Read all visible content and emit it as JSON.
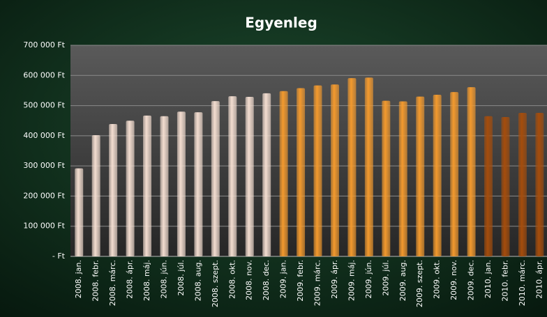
{
  "chart_data": {
    "type": "bar",
    "title": "Egyenleg",
    "categories": [
      "2008. jan.",
      "2008. febr.",
      "2008. márc.",
      "2008. ápr.",
      "2008. máj.",
      "2008. jún.",
      "2008. júl.",
      "2008. aug.",
      "2008. szept.",
      "2008. okt.",
      "2008. nov.",
      "2008. dec.",
      "2009. jan.",
      "2009. febr.",
      "2009. márc.",
      "2009. ápr.",
      "2009. máj.",
      "2009. jún.",
      "2009. júl.",
      "2009. aug.",
      "2009. szept.",
      "2009. okt.",
      "2009. nov.",
      "2009. dec.",
      "2010. jan.",
      "2010. febr.",
      "2010. márc.",
      "2010. ápr."
    ],
    "values": [
      292000,
      402000,
      439000,
      450000,
      467000,
      465000,
      480000,
      478000,
      515000,
      531000,
      529000,
      541000,
      548000,
      558000,
      567000,
      570000,
      591000,
      593000,
      516000,
      514000,
      530000,
      536000,
      545000,
      561000,
      465000,
      462000,
      476000,
      476000
    ],
    "colors": [
      "#f3ddd0",
      "#f3ddd0",
      "#f3ddd0",
      "#f3ddd0",
      "#f3ddd0",
      "#f3ddd0",
      "#f3ddd0",
      "#f3ddd0",
      "#f3ddd0",
      "#f3ddd0",
      "#f3ddd0",
      "#f3ddd0",
      "#f39a2e",
      "#f39a2e",
      "#f39a2e",
      "#f39a2e",
      "#f39a2e",
      "#f39a2e",
      "#f39a2e",
      "#f39a2e",
      "#f39a2e",
      "#f39a2e",
      "#f39a2e",
      "#f39a2e",
      "#a54d0c",
      "#a54d0c",
      "#a54d0c",
      "#a54d0c"
    ],
    "ylim": [
      0,
      700000
    ],
    "yticks": [
      {
        "value": 0,
        "label": "- Ft"
      },
      {
        "value": 100000,
        "label": "100 000 Ft"
      },
      {
        "value": 200000,
        "label": "200 000 Ft"
      },
      {
        "value": 300000,
        "label": "300 000 Ft"
      },
      {
        "value": 400000,
        "label": "400 000 Ft"
      },
      {
        "value": 500000,
        "label": "500 000 Ft"
      },
      {
        "value": 600000,
        "label": "600 000 Ft"
      },
      {
        "value": 700000,
        "label": "700 000 Ft"
      }
    ],
    "grid": true
  }
}
